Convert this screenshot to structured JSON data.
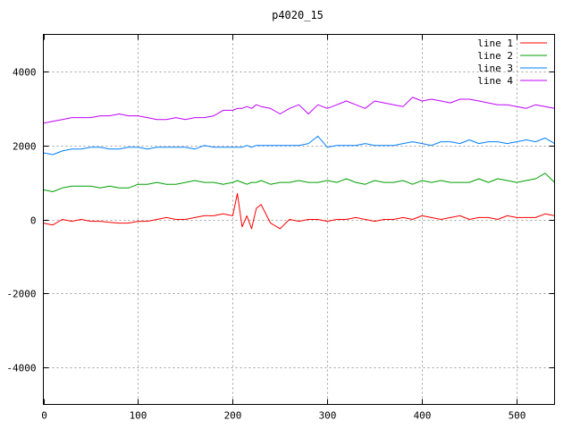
{
  "chart_data": {
    "type": "line",
    "title": "p4020_15",
    "xlabel": "",
    "ylabel": "",
    "xlim": [
      0,
      540
    ],
    "ylim": [
      -5000,
      5000
    ],
    "xticks": [
      0,
      100,
      200,
      300,
      400,
      500
    ],
    "yticks": [
      -4000,
      -2000,
      0,
      2000,
      4000
    ],
    "grid": true,
    "legend_position": "top-right",
    "x": [
      0,
      10,
      20,
      30,
      40,
      50,
      60,
      70,
      80,
      90,
      100,
      110,
      120,
      130,
      140,
      150,
      160,
      170,
      180,
      190,
      200,
      205,
      210,
      215,
      220,
      225,
      230,
      240,
      250,
      260,
      270,
      280,
      290,
      300,
      310,
      320,
      330,
      340,
      350,
      360,
      370,
      380,
      390,
      400,
      410,
      420,
      430,
      440,
      450,
      460,
      470,
      480,
      490,
      500,
      510,
      520,
      530,
      540
    ],
    "series": [
      {
        "name": "line 1",
        "color": "#ff0000",
        "values": [
          -100,
          -150,
          0,
          -50,
          0,
          -50,
          -50,
          -80,
          -100,
          -100,
          -50,
          -50,
          0,
          50,
          0,
          0,
          50,
          100,
          100,
          150,
          100,
          700,
          -200,
          100,
          -250,
          300,
          400,
          -100,
          -250,
          0,
          -50,
          0,
          0,
          -50,
          0,
          0,
          50,
          0,
          -50,
          0,
          0,
          50,
          0,
          100,
          50,
          0,
          50,
          100,
          0,
          50,
          50,
          0,
          100,
          50,
          50,
          50,
          150,
          100
        ]
      },
      {
        "name": "line 2",
        "color": "#00a000",
        "values": [
          800,
          750,
          850,
          900,
          900,
          900,
          850,
          900,
          850,
          850,
          950,
          950,
          1000,
          950,
          950,
          1000,
          1050,
          1000,
          1000,
          950,
          1000,
          1050,
          1000,
          950,
          1000,
          1000,
          1050,
          950,
          1000,
          1000,
          1050,
          1000,
          1000,
          1050,
          1000,
          1100,
          1000,
          950,
          1050,
          1000,
          1000,
          1050,
          950,
          1050,
          1000,
          1050,
          1000,
          1000,
          1000,
          1100,
          1000,
          1100,
          1050,
          1000,
          1050,
          1100,
          1250,
          1000
        ]
      },
      {
        "name": "line 3",
        "color": "#0080ff",
        "values": [
          1800,
          1750,
          1850,
          1900,
          1900,
          1950,
          1950,
          1900,
          1900,
          1950,
          1950,
          1900,
          1950,
          1950,
          1950,
          1950,
          1900,
          2000,
          1950,
          1950,
          1950,
          1950,
          1950,
          2000,
          1950,
          2000,
          2000,
          2000,
          2000,
          2000,
          2000,
          2050,
          2250,
          1950,
          2000,
          2000,
          2000,
          2050,
          2000,
          2000,
          2000,
          2050,
          2100,
          2050,
          2000,
          2100,
          2100,
          2050,
          2150,
          2050,
          2100,
          2100,
          2050,
          2100,
          2150,
          2100,
          2200,
          2050
        ]
      },
      {
        "name": "line 4",
        "color": "#c000ff",
        "values": [
          2600,
          2650,
          2700,
          2750,
          2750,
          2750,
          2800,
          2800,
          2850,
          2800,
          2800,
          2750,
          2700,
          2700,
          2750,
          2700,
          2750,
          2750,
          2800,
          2950,
          2950,
          3000,
          3000,
          3050,
          3000,
          3100,
          3050,
          3000,
          2850,
          3000,
          3100,
          2850,
          3100,
          3000,
          3100,
          3200,
          3100,
          3000,
          3200,
          3150,
          3100,
          3050,
          3300,
          3200,
          3250,
          3200,
          3150,
          3250,
          3250,
          3200,
          3150,
          3100,
          3100,
          3050,
          3000,
          3100,
          3050,
          3000
        ]
      }
    ]
  }
}
